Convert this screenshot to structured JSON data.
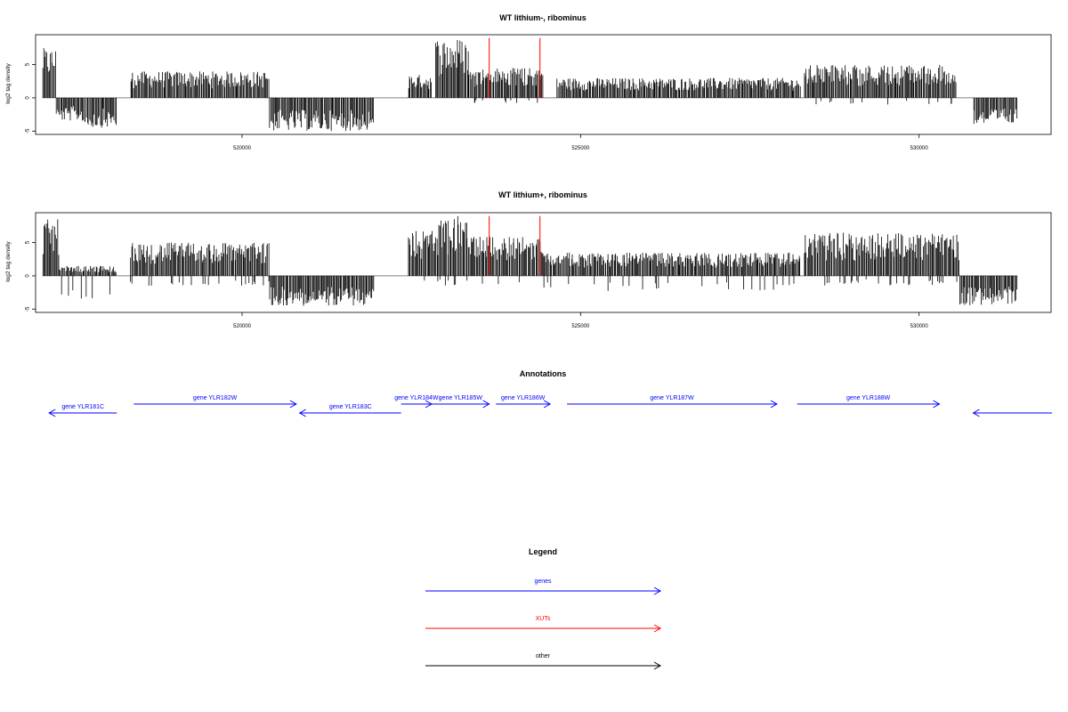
{
  "chart_data": [
    {
      "type": "bar",
      "title": "WT lithium-, ribominus",
      "ylabel": "log2 tag density",
      "xlim": [
        516950,
        531950
      ],
      "ylim": [
        -5.5,
        9.5
      ],
      "x_ticks": [
        "520000",
        "525000",
        "530000"
      ],
      "y_ticks": [
        "-5",
        "0",
        "5"
      ],
      "xut_lines_x": [
        523650,
        524400
      ],
      "segments": [
        {
          "x0": 517050,
          "x1": 517250,
          "max": 7.5,
          "min": 0
        },
        {
          "x0": 517250,
          "x1": 517650,
          "max": 0,
          "min": -3.5
        },
        {
          "x0": 517650,
          "x1": 518150,
          "max": 0,
          "min": -4.5
        },
        {
          "x0": 518350,
          "x1": 520400,
          "max": 4.0,
          "min": 0
        },
        {
          "x0": 520400,
          "x1": 521950,
          "max": 0,
          "min": -5.0
        },
        {
          "x0": 522450,
          "x1": 522800,
          "max": 3.5,
          "min": 0
        },
        {
          "x0": 522850,
          "x1": 523350,
          "max": 9.0,
          "min": 0
        },
        {
          "x0": 523350,
          "x1": 524450,
          "max": 4.5,
          "min": -1.0
        },
        {
          "x0": 524650,
          "x1": 528250,
          "max": 3.0,
          "min": 0
        },
        {
          "x0": 528300,
          "x1": 530550,
          "max": 5.0,
          "min": -1.0
        },
        {
          "x0": 530800,
          "x1": 531450,
          "max": 0,
          "min": -4.0
        }
      ]
    },
    {
      "type": "bar",
      "title": "WT lithium+, ribominus",
      "ylabel": "log2 tag density",
      "xlim": [
        516950,
        531950
      ],
      "ylim": [
        -5.5,
        9.5
      ],
      "x_ticks": [
        "520000",
        "525000",
        "530000"
      ],
      "y_ticks": [
        "-5",
        "0",
        "5"
      ],
      "xut_lines_x": [
        523650,
        524400
      ],
      "segments": [
        {
          "x0": 517050,
          "x1": 517300,
          "max": 8.5,
          "min": 0
        },
        {
          "x0": 517300,
          "x1": 518150,
          "max": 1.5,
          "min": -4.0
        },
        {
          "x0": 518350,
          "x1": 520400,
          "max": 5.0,
          "min": -1.5
        },
        {
          "x0": 520400,
          "x1": 521950,
          "max": 0,
          "min": -4.5
        },
        {
          "x0": 522450,
          "x1": 522900,
          "max": 7.0,
          "min": -1.0
        },
        {
          "x0": 522900,
          "x1": 523350,
          "max": 9.0,
          "min": -1.5
        },
        {
          "x0": 523350,
          "x1": 524450,
          "max": 6.0,
          "min": -1.5
        },
        {
          "x0": 524450,
          "x1": 528250,
          "max": 3.5,
          "min": -2.5
        },
        {
          "x0": 528300,
          "x1": 530600,
          "max": 6.5,
          "min": -1.5
        },
        {
          "x0": 530600,
          "x1": 531450,
          "max": 0,
          "min": -4.5
        }
      ]
    }
  ],
  "annotations": {
    "title": "Annotations",
    "genes": [
      {
        "label": "gene YLR181C",
        "x0": 517150,
        "x1": 518150,
        "dir": "left"
      },
      {
        "label": "gene YLR182W",
        "x0": 518400,
        "x1": 520800,
        "dir": "right"
      },
      {
        "label": "gene YLR183C",
        "x0": 520850,
        "x1": 522350,
        "dir": "left"
      },
      {
        "label": "gene YLR184W",
        "x0": 522350,
        "x1": 522800,
        "dir": "right"
      },
      {
        "label": "gene YLR185W",
        "x0": 522800,
        "x1": 523650,
        "dir": "right"
      },
      {
        "label": "gene YLR186W",
        "x0": 523750,
        "x1": 524550,
        "dir": "right"
      },
      {
        "label": "gene YLR187W",
        "x0": 524800,
        "x1": 527900,
        "dir": "right"
      },
      {
        "label": "gene YLR188W",
        "x0": 528200,
        "x1": 530300,
        "dir": "right"
      },
      {
        "label": "",
        "x0": 530800,
        "x1": 532100,
        "dir": "left"
      }
    ]
  },
  "legend": {
    "title": "Legend",
    "items": [
      {
        "label": "genes",
        "color": "#0000ff"
      },
      {
        "label": "XUTs",
        "color": "#ff0000"
      },
      {
        "label": "other",
        "color": "#000000"
      }
    ]
  },
  "colors": {
    "bars": "#000000",
    "xut": "#ff0000",
    "gene": "#0000ff",
    "axis": "#000000",
    "baseline": "#808080"
  }
}
